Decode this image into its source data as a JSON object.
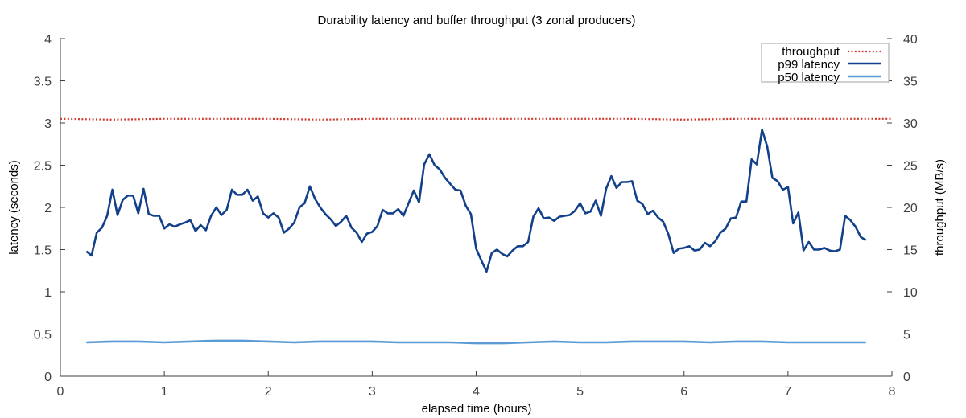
{
  "chart_data": {
    "type": "line",
    "title": "Durability latency and buffer throughput (3 zonal producers)",
    "xlabel": "elapsed time (hours)",
    "ylabel": "latency (seconds)",
    "y2label": "throughput (MB/s)",
    "xlim": [
      0,
      8
    ],
    "ylim": [
      0,
      4
    ],
    "y2lim": [
      0,
      40
    ],
    "xticks": [
      "0",
      "1",
      "2",
      "3",
      "4",
      "5",
      "6",
      "7",
      "8"
    ],
    "yticks": [
      "0",
      "0.5",
      "1",
      "1.5",
      "2",
      "2.5",
      "3",
      "3.5",
      "4"
    ],
    "y2ticks": [
      "0",
      "5",
      "10",
      "15",
      "20",
      "25",
      "30",
      "35",
      "40"
    ],
    "grid": false,
    "legend_position": "top-right",
    "legend": [
      "throughput",
      "p99 latency",
      "p50 latency"
    ],
    "colors": {
      "throughput": "#d03a2f",
      "p99": "#12408a",
      "p50": "#5b9bd5",
      "axis": "#404040"
    },
    "series": [
      {
        "name": "throughput",
        "axis": "right",
        "style": "dotted",
        "x": [
          0,
          0.5,
          1,
          1.5,
          2,
          2.5,
          3,
          3.5,
          4,
          4.5,
          5,
          5.5,
          6,
          6.5,
          7,
          7.5,
          8
        ],
        "values": [
          30.5,
          30.4,
          30.5,
          30.5,
          30.5,
          30.4,
          30.5,
          30.5,
          30.5,
          30.5,
          30.5,
          30.5,
          30.4,
          30.5,
          30.5,
          30.5,
          30.5
        ]
      },
      {
        "name": "p99 latency",
        "axis": "left",
        "style": "solid",
        "x_start": 0.25,
        "x_step": 0.05,
        "values": [
          1.48,
          1.43,
          1.7,
          1.76,
          1.9,
          2.21,
          1.91,
          2.09,
          2.14,
          2.14,
          1.93,
          2.22,
          1.92,
          1.9,
          1.9,
          1.75,
          1.8,
          1.77,
          1.8,
          1.82,
          1.85,
          1.72,
          1.79,
          1.73,
          1.9,
          2.0,
          1.91,
          1.97,
          2.21,
          2.15,
          2.15,
          2.21,
          2.08,
          2.13,
          1.93,
          1.88,
          1.93,
          1.88,
          1.7,
          1.75,
          1.82,
          2.0,
          2.05,
          2.25,
          2.1,
          2.0,
          1.92,
          1.86,
          1.78,
          1.83,
          1.9,
          1.76,
          1.7,
          1.59,
          1.69,
          1.71,
          1.78,
          1.97,
          1.93,
          1.93,
          1.98,
          1.9,
          2.05,
          2.2,
          2.06,
          2.51,
          2.63,
          2.5,
          2.45,
          2.35,
          2.28,
          2.21,
          2.2,
          2.02,
          1.92,
          1.51,
          1.37,
          1.24,
          1.46,
          1.5,
          1.45,
          1.42,
          1.49,
          1.54,
          1.54,
          1.59,
          1.89,
          1.99,
          1.87,
          1.88,
          1.84,
          1.89,
          1.9,
          1.91,
          1.96,
          2.05,
          1.93,
          1.95,
          2.08,
          1.9,
          2.22,
          2.37,
          2.23,
          2.3,
          2.3,
          2.31,
          2.08,
          2.04,
          1.92,
          1.96,
          1.88,
          1.83,
          1.68,
          1.46,
          1.51,
          1.52,
          1.54,
          1.49,
          1.5,
          1.58,
          1.54,
          1.6,
          1.7,
          1.75,
          1.87,
          1.88,
          2.07,
          2.07,
          2.57,
          2.51,
          2.92,
          2.72,
          2.35,
          2.31,
          2.21,
          2.24,
          1.81,
          1.94,
          1.49,
          1.59,
          1.5,
          1.5,
          1.52,
          1.49,
          1.48,
          1.5,
          1.9,
          1.85,
          1.77,
          1.65,
          1.61
        ]
      },
      {
        "name": "p50 latency",
        "axis": "left",
        "style": "solid",
        "x": [
          0.25,
          0.5,
          0.75,
          1.0,
          1.25,
          1.5,
          1.75,
          2.0,
          2.25,
          2.5,
          2.75,
          3.0,
          3.25,
          3.5,
          3.75,
          4.0,
          4.25,
          4.5,
          4.75,
          5.0,
          5.25,
          5.5,
          5.75,
          6.0,
          6.25,
          6.5,
          6.75,
          7.0,
          7.25,
          7.5,
          7.75
        ],
        "values": [
          0.4,
          0.41,
          0.41,
          0.4,
          0.41,
          0.42,
          0.42,
          0.41,
          0.4,
          0.41,
          0.41,
          0.41,
          0.4,
          0.4,
          0.4,
          0.39,
          0.39,
          0.4,
          0.41,
          0.4,
          0.4,
          0.41,
          0.41,
          0.41,
          0.4,
          0.41,
          0.41,
          0.4,
          0.4,
          0.4,
          0.4
        ]
      }
    ]
  }
}
